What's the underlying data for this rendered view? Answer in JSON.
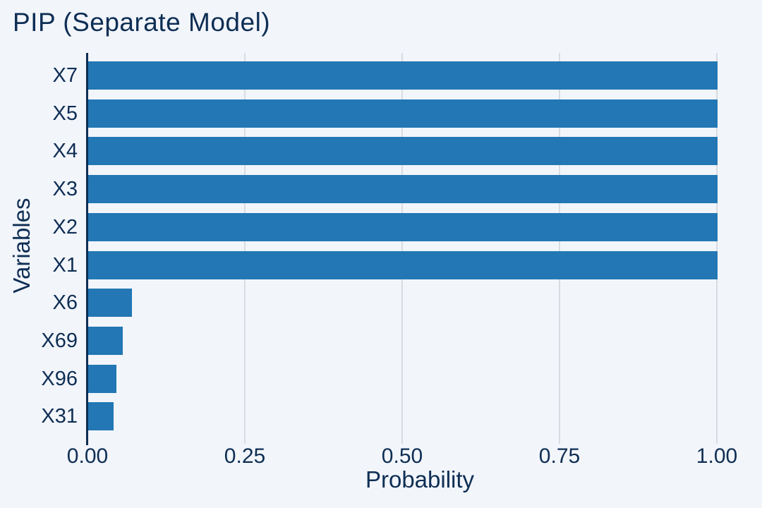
{
  "chart_data": {
    "type": "bar",
    "orientation": "horizontal",
    "title": "PIP (Separate Model)",
    "xlabel": "Probability",
    "ylabel": "Variables",
    "categories": [
      "X7",
      "X5",
      "X4",
      "X3",
      "X2",
      "X1",
      "X6",
      "X69",
      "X96",
      "X31"
    ],
    "values": [
      1.0,
      1.0,
      1.0,
      1.0,
      1.0,
      1.0,
      0.07,
      0.055,
      0.045,
      0.04
    ],
    "xlim": [
      0,
      1.0
    ],
    "xticks": [
      {
        "value": 0.0,
        "label": "0.00"
      },
      {
        "value": 0.25,
        "label": "0.25"
      },
      {
        "value": 0.5,
        "label": "0.50"
      },
      {
        "value": 0.75,
        "label": "0.75"
      },
      {
        "value": 1.0,
        "label": "1.00"
      }
    ],
    "grid": "vertical-only",
    "legend": "none",
    "colors": {
      "bar": "#2277b4",
      "background": "#f2f5fa",
      "text": "#0e2e54",
      "gridline": "#d8dce3",
      "axis": "#0e2e54"
    }
  }
}
